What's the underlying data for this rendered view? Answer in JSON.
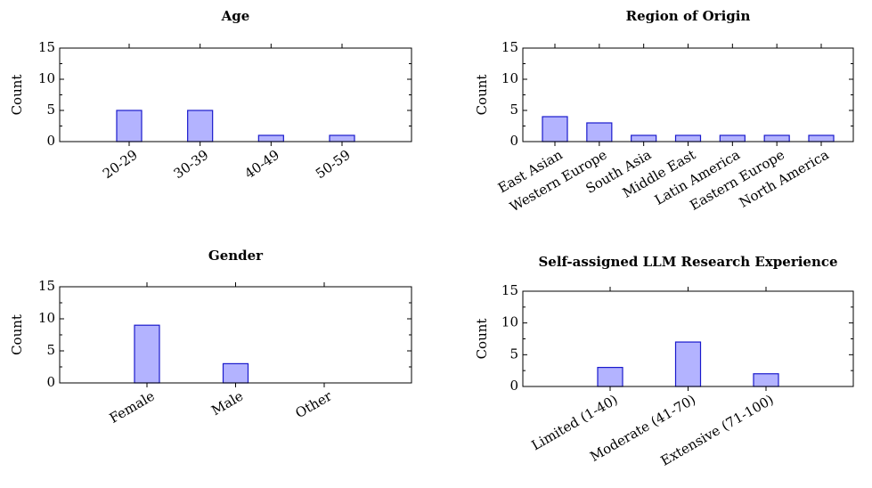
{
  "colors": {
    "bar_fill": "#b3b3ff",
    "bar_stroke": "#1a1acc",
    "axis": "#000000"
  },
  "chart_data": [
    {
      "type": "bar",
      "title": "Age",
      "ylabel": "Count",
      "ylim": [
        0,
        15
      ],
      "yticks": [
        0,
        5,
        10,
        15
      ],
      "categories": [
        "20-29",
        "30-39",
        "40-49",
        "50-59"
      ],
      "values": [
        5,
        5,
        1,
        1
      ],
      "grid": false
    },
    {
      "type": "bar",
      "title": "Region of Origin",
      "ylabel": "Count",
      "ylim": [
        0,
        15
      ],
      "yticks": [
        0,
        5,
        10,
        15
      ],
      "categories": [
        "East Asian",
        "Western Europe",
        "South Asia",
        "Middle East",
        "Latin America",
        "Eastern Europe",
        "North America"
      ],
      "values": [
        4,
        3,
        1,
        1,
        1,
        1,
        1
      ],
      "grid": false
    },
    {
      "type": "bar",
      "title": "Gender",
      "ylabel": "Count",
      "ylim": [
        0,
        15
      ],
      "yticks": [
        0,
        5,
        10,
        15
      ],
      "categories": [
        "Female",
        "Male",
        "Other"
      ],
      "values": [
        9,
        3,
        0
      ],
      "grid": false
    },
    {
      "type": "bar",
      "title": "Self-assigned LLM Research Experience",
      "ylabel": "Count",
      "ylim": [
        0,
        15
      ],
      "yticks": [
        0,
        5,
        10,
        15
      ],
      "categories": [
        "Limited (1-40)",
        "Moderate (41-70)",
        "Extensive (71-100)"
      ],
      "values": [
        3,
        7,
        2
      ],
      "grid": false
    }
  ]
}
